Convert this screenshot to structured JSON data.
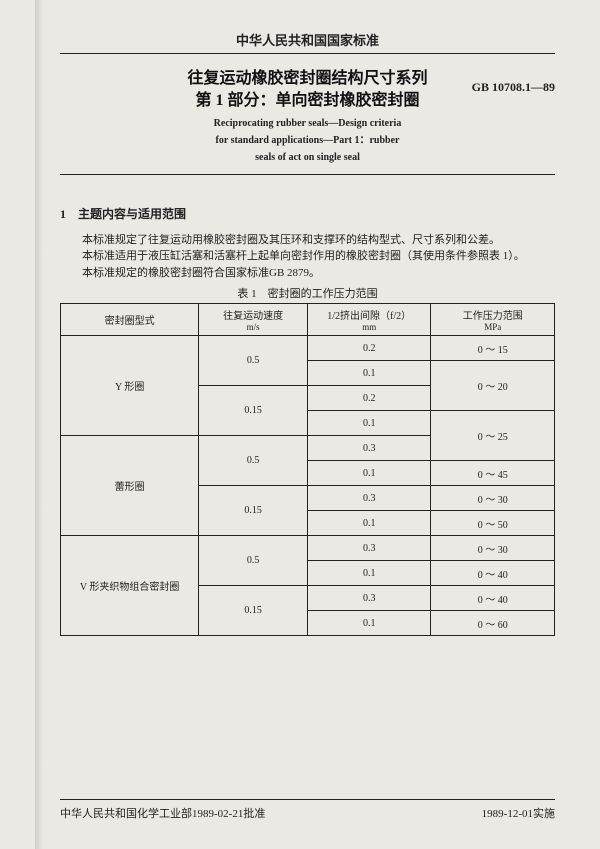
{
  "header": {
    "country_std": "中华人民共和国国家标准",
    "title_zh1": "往复运动橡胶密封圈结构尺寸系列",
    "title_zh2": "第 1 部分：单向密封橡胶密封圈",
    "title_en1": "Reciprocating rubber seals—Design criteria",
    "title_en2": "for standard applications—Part 1：rubber",
    "title_en3": "seals of act on single seal",
    "std_code": "GB 10708.1—89"
  },
  "section1": {
    "heading": "1　主题内容与适用范围",
    "p1": "本标准规定了往复运动用橡胶密封圈及其压环和支撑环的结构型式、尺寸系列和公差。",
    "p2": "本标准适用于液压缸活塞和活塞杆上起单向密封作用的橡胶密封圈（其使用条件参照表 1）。",
    "p3": "本标准规定的橡胶密封圈符合国家标准GB 2879。",
    "table_caption": "表 1　密封圈的工作压力范围"
  },
  "table": {
    "columns": {
      "c1": "密封圈型式",
      "c2a": "往复运动速度",
      "c2b": "m/s",
      "c3a": "1/2挤出间隙（f/2）",
      "c3b": "mm",
      "c4a": "工作压力范围",
      "c4b": "MPa"
    },
    "rows": [
      {
        "type": "Y 形圈",
        "speed": "0.5",
        "gap": "0.2",
        "press": "0 ～ 15"
      },
      {
        "type": "",
        "speed": "",
        "gap": "0.1",
        "press": "0 ～ 20",
        "merge_press": true
      },
      {
        "type": "",
        "speed": "0.15",
        "gap": "0.2",
        "press": ""
      },
      {
        "type": "",
        "speed": "",
        "gap": "0.1",
        "press": "0 ～ 25",
        "merge_press_down": true
      },
      {
        "type": "蕾形圈",
        "speed": "0.5",
        "gap": "0.3",
        "press": ""
      },
      {
        "type": "",
        "speed": "",
        "gap": "0.1",
        "press": "0 ～ 45"
      },
      {
        "type": "",
        "speed": "0.15",
        "gap": "0.3",
        "press": "0 ～ 30"
      },
      {
        "type": "",
        "speed": "",
        "gap": "0.1",
        "press": "0 ～ 50"
      },
      {
        "type": "V 形夹织物组合密封圈",
        "speed": "0.5",
        "gap": "0.3",
        "press": "0 ～ 30"
      },
      {
        "type": "",
        "speed": "",
        "gap": "0.1",
        "press": "0 ～ 40"
      },
      {
        "type": "",
        "speed": "0.15",
        "gap": "0.3",
        "press": "0 ～ 40"
      },
      {
        "type": "",
        "speed": "",
        "gap": "0.1",
        "press": "0 ～ 60"
      }
    ]
  },
  "footer": {
    "left": "中华人民共和国化学工业部1989-02-21批准",
    "right": "1989-12-01实施"
  }
}
